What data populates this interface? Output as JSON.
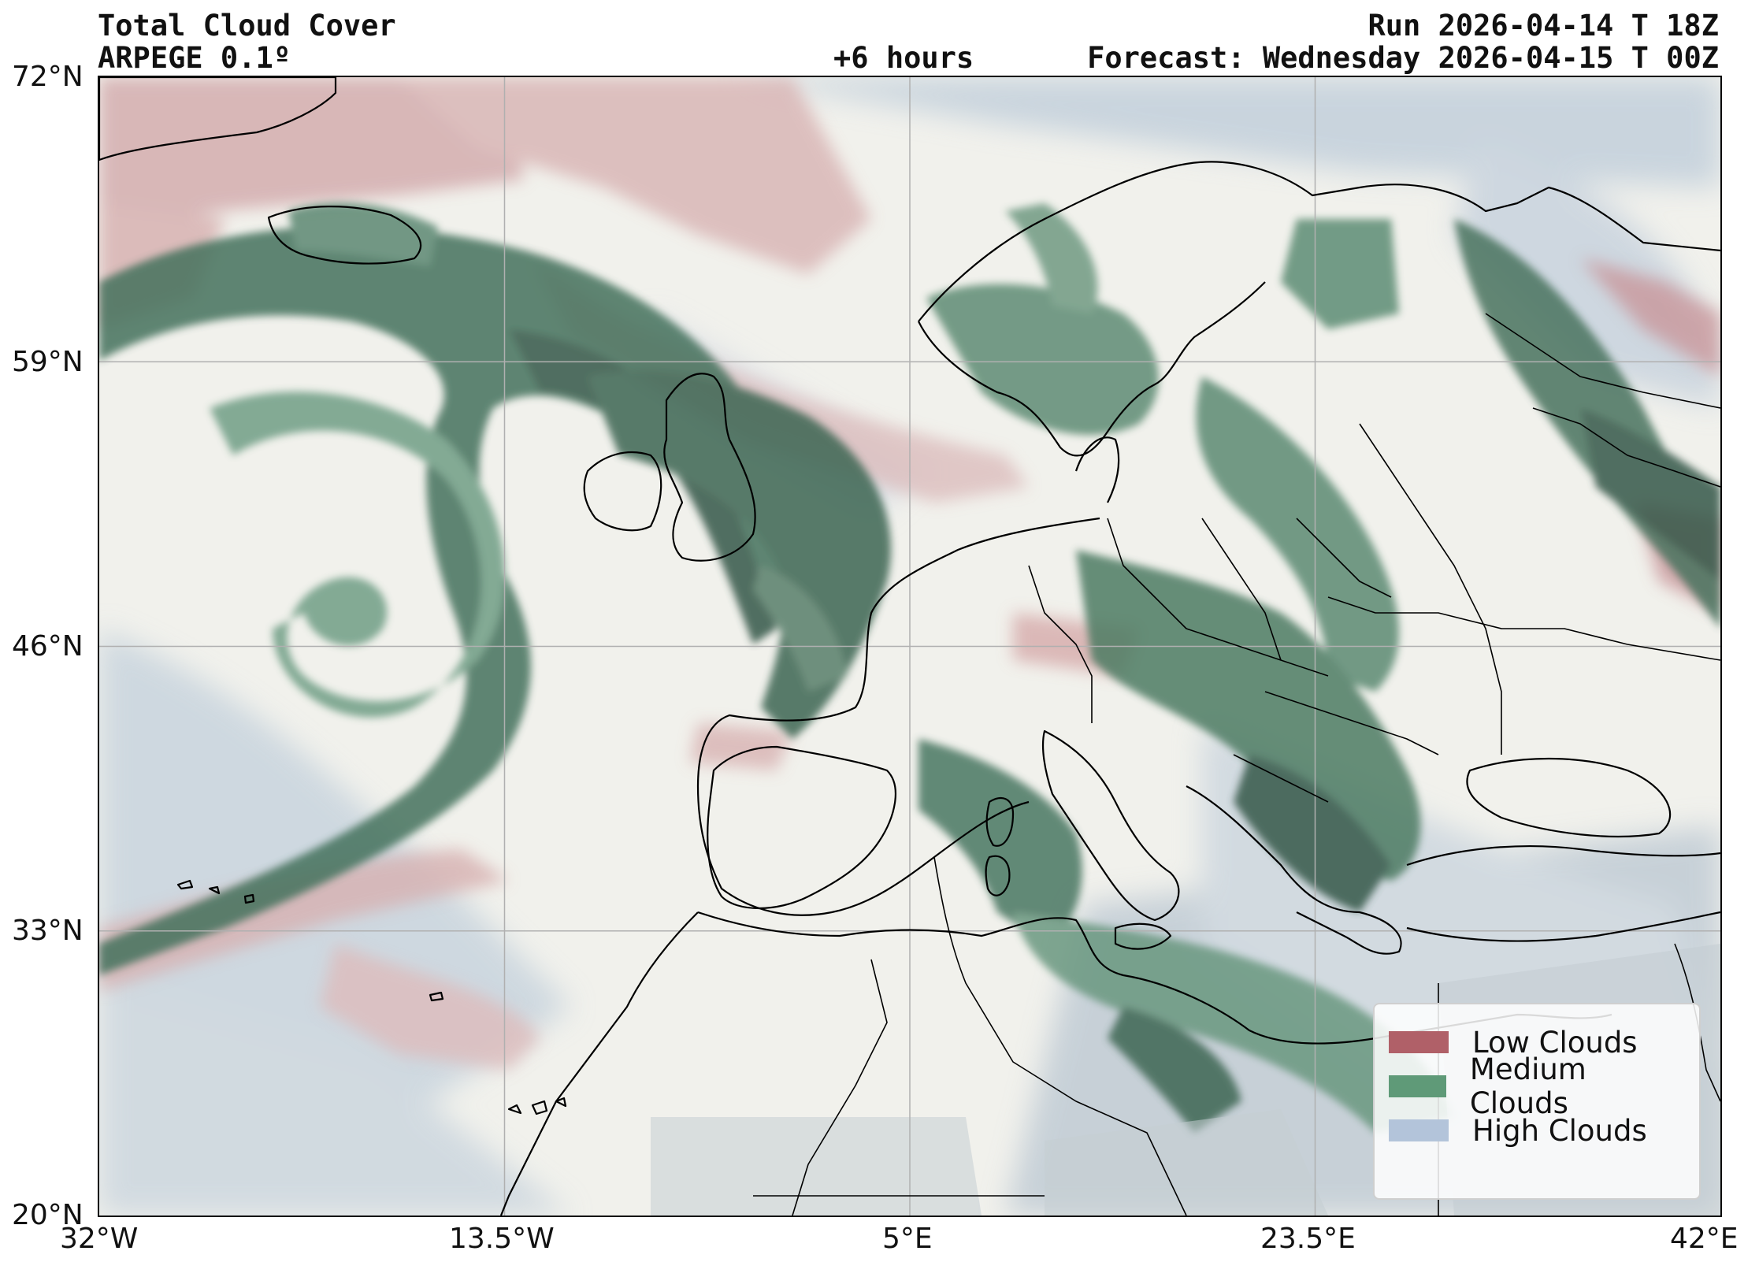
{
  "header": {
    "title": "Total Cloud Cover",
    "model": "ARPEGE 0.1º",
    "lead": "+6 hours",
    "run": "Run 2026-04-14 T 18Z",
    "forecast": "Forecast: Wednesday 2026-04-15 T 00Z"
  },
  "map": {
    "lon_range": [
      -32,
      42
    ],
    "lat_range": [
      20,
      72
    ],
    "lat_ticks": [
      "72°N",
      "59°N",
      "46°N",
      "33°N",
      "20°N"
    ],
    "lon_ticks": [
      "32°W",
      "13.5°W",
      "5°E",
      "23.5°E",
      "42°E"
    ],
    "grid": true
  },
  "legend": {
    "items": [
      {
        "label": "Low Clouds",
        "color": "#b06068"
      },
      {
        "label": "Medium Clouds",
        "color": "#5f9a78"
      },
      {
        "label": "High Clouds",
        "color": "#b3c4da"
      }
    ]
  },
  "colors": {
    "land": "#f1f1ed",
    "low": "#c9989b",
    "medium": "#3f6e58",
    "high": "#b9c8d6"
  }
}
